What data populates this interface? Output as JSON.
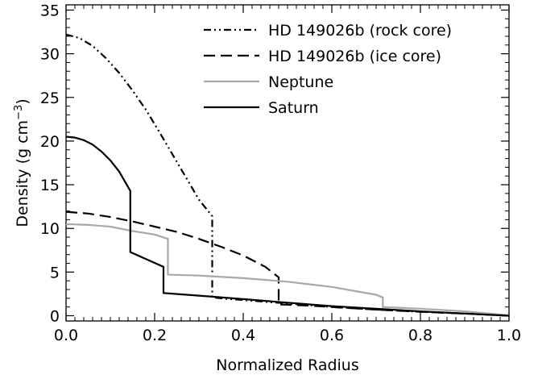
{
  "chart_data": {
    "type": "line",
    "xlabel": "Normalized Radius",
    "ylabel_main": "Density (g cm",
    "ylabel_sup": "−3",
    "ylabel_close": ")",
    "xlim": [
      0.0,
      1.0
    ],
    "ylim": [
      -0.6,
      35.6
    ],
    "x_ticks": [
      0.0,
      0.2,
      0.4,
      0.6,
      0.8,
      1.0
    ],
    "x_tick_labels": [
      "0.0",
      "0.2",
      "0.4",
      "0.6",
      "0.8",
      "1.0"
    ],
    "y_ticks": [
      0,
      5,
      10,
      15,
      20,
      25,
      30,
      35
    ],
    "y_tick_labels": [
      "0",
      "5",
      "10",
      "15",
      "20",
      "25",
      "30",
      "35"
    ],
    "grid": false,
    "legend_position": "top-right",
    "series": [
      {
        "name": "HD 149026b (rock core)",
        "style": "dashdotdot",
        "color": "#000000",
        "points": [
          [
            0.0,
            32.2
          ],
          [
            0.03,
            31.8
          ],
          [
            0.06,
            30.9
          ],
          [
            0.09,
            29.5
          ],
          [
            0.12,
            27.8
          ],
          [
            0.15,
            25.8
          ],
          [
            0.18,
            23.6
          ],
          [
            0.21,
            21.1
          ],
          [
            0.24,
            18.5
          ],
          [
            0.27,
            15.9
          ],
          [
            0.3,
            13.3
          ],
          [
            0.33,
            11.4
          ],
          [
            0.33,
            2.1
          ],
          [
            0.36,
            1.95
          ],
          [
            0.4,
            1.8
          ],
          [
            0.45,
            1.6
          ],
          [
            0.5,
            1.4
          ],
          [
            0.6,
            1.0
          ],
          [
            0.7,
            0.7
          ],
          [
            0.8,
            0.45
          ],
          [
            0.9,
            0.25
          ],
          [
            1.0,
            0.0
          ]
        ]
      },
      {
        "name": "HD 149026b (ice core)",
        "style": "dashed",
        "color": "#000000",
        "points": [
          [
            0.0,
            11.9
          ],
          [
            0.05,
            11.7
          ],
          [
            0.1,
            11.3
          ],
          [
            0.15,
            10.8
          ],
          [
            0.2,
            10.2
          ],
          [
            0.25,
            9.6
          ],
          [
            0.3,
            8.8
          ],
          [
            0.35,
            7.9
          ],
          [
            0.4,
            6.9
          ],
          [
            0.45,
            5.6
          ],
          [
            0.48,
            4.4
          ],
          [
            0.48,
            1.3
          ],
          [
            0.55,
            1.15
          ],
          [
            0.6,
            1.0
          ],
          [
            0.7,
            0.7
          ],
          [
            0.8,
            0.45
          ],
          [
            0.9,
            0.25
          ],
          [
            1.0,
            0.0
          ]
        ]
      },
      {
        "name": "Neptune",
        "style": "solid",
        "color": "#a8a8a8",
        "points": [
          [
            0.0,
            10.5
          ],
          [
            0.05,
            10.4
          ],
          [
            0.1,
            10.2
          ],
          [
            0.15,
            9.7
          ],
          [
            0.2,
            9.3
          ],
          [
            0.23,
            8.8
          ],
          [
            0.23,
            4.7
          ],
          [
            0.3,
            4.6
          ],
          [
            0.4,
            4.3
          ],
          [
            0.5,
            3.9
          ],
          [
            0.6,
            3.3
          ],
          [
            0.7,
            2.4
          ],
          [
            0.715,
            2.1
          ],
          [
            0.715,
            1.0
          ],
          [
            0.8,
            0.8
          ],
          [
            0.9,
            0.5
          ],
          [
            1.0,
            0.05
          ]
        ]
      },
      {
        "name": "Saturn",
        "style": "solid",
        "color": "#000000",
        "points": [
          [
            0.0,
            20.5
          ],
          [
            0.02,
            20.4
          ],
          [
            0.04,
            20.1
          ],
          [
            0.06,
            19.6
          ],
          [
            0.08,
            18.8
          ],
          [
            0.1,
            17.8
          ],
          [
            0.12,
            16.5
          ],
          [
            0.145,
            14.3
          ],
          [
            0.145,
            7.3
          ],
          [
            0.18,
            6.5
          ],
          [
            0.22,
            5.6
          ],
          [
            0.22,
            2.6
          ],
          [
            0.3,
            2.3
          ],
          [
            0.4,
            1.9
          ],
          [
            0.5,
            1.5
          ],
          [
            0.6,
            1.1
          ],
          [
            0.7,
            0.8
          ],
          [
            0.8,
            0.5
          ],
          [
            0.9,
            0.25
          ],
          [
            1.0,
            0.0
          ]
        ]
      }
    ]
  }
}
